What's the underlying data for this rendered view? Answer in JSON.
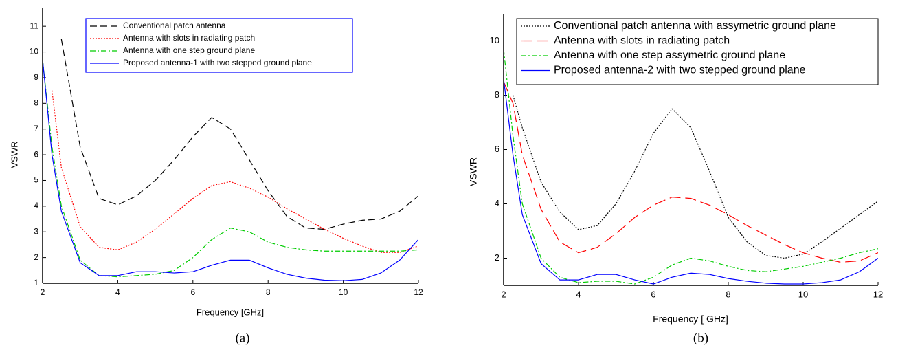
{
  "chart_data": [
    {
      "type": "line",
      "caption": "(a)",
      "x_label": "Frequency [GHz]",
      "y_label": "VSWR",
      "x": [
        2,
        2.25,
        2.5,
        3,
        3.5,
        4,
        4.5,
        5,
        5.5,
        6,
        6.5,
        7,
        7.5,
        8,
        8.5,
        9,
        9.5,
        10,
        10.5,
        11,
        11.5,
        12
      ],
      "xlim": [
        2,
        12
      ],
      "xticks": [
        2,
        4,
        6,
        8,
        10,
        12
      ],
      "ylim": [
        1,
        11.7
      ],
      "yticks": [
        1,
        2,
        3,
        4,
        5,
        6,
        7,
        8,
        9,
        10,
        11
      ],
      "legend": "upper right",
      "series": [
        {
          "name": "Conventional patch antenna",
          "color": "#000000",
          "style": "dashed",
          "values": [
            null,
            null,
            10.5,
            6.3,
            4.3,
            4.05,
            4.4,
            5.0,
            5.8,
            6.7,
            7.45,
            7.0,
            5.8,
            4.6,
            3.6,
            3.15,
            3.1,
            3.3,
            3.45,
            3.5,
            3.8,
            4.4
          ]
        },
        {
          "name": "Antenna with slots in radiating patch",
          "color": "#ff0000",
          "style": "dotted",
          "values": [
            null,
            8.5,
            5.5,
            3.2,
            2.4,
            2.3,
            2.6,
            3.1,
            3.7,
            4.3,
            4.8,
            4.95,
            4.7,
            4.35,
            3.9,
            3.5,
            3.1,
            2.75,
            2.45,
            2.2,
            2.2,
            2.45
          ]
        },
        {
          "name": "Antenna with one step ground plane",
          "color": "#00cc00",
          "style": "dash-dot",
          "values": [
            9.7,
            6.3,
            4.0,
            1.9,
            1.3,
            1.25,
            1.3,
            1.35,
            1.5,
            2.0,
            2.7,
            3.15,
            3.0,
            2.6,
            2.4,
            2.3,
            2.25,
            2.25,
            2.25,
            2.25,
            2.25,
            2.3
          ]
        },
        {
          "name": "Proposed antenna-1 with two stepped ground plane",
          "color": "#0000ff",
          "style": "solid",
          "values": [
            9.7,
            6.0,
            3.8,
            1.8,
            1.3,
            1.3,
            1.45,
            1.45,
            1.4,
            1.45,
            1.7,
            1.9,
            1.9,
            1.6,
            1.35,
            1.2,
            1.12,
            1.1,
            1.15,
            1.4,
            1.9,
            2.7
          ]
        }
      ]
    },
    {
      "type": "line",
      "caption": "(b)",
      "x_label": "Frequency [ GHz]",
      "y_label": "VSWR",
      "x": [
        2,
        2.25,
        2.5,
        3,
        3.5,
        4,
        4.5,
        5,
        5.5,
        6,
        6.5,
        7,
        7.5,
        8,
        8.5,
        9,
        9.5,
        10,
        10.5,
        11,
        11.5,
        12
      ],
      "xlim": [
        2,
        12
      ],
      "xticks": [
        2,
        4,
        6,
        8,
        10,
        12
      ],
      "ylim": [
        1,
        11
      ],
      "yticks": [
        2,
        4,
        6,
        8,
        10
      ],
      "legend": "upper right",
      "series": [
        {
          "name": "Conventional patch antenna with assymetric  ground plane",
          "color": "#000000",
          "style": "dotted",
          "values": [
            null,
            8.0,
            6.8,
            4.8,
            3.7,
            3.05,
            3.2,
            4.0,
            5.2,
            6.6,
            7.5,
            6.8,
            5.2,
            3.5,
            2.6,
            2.1,
            2.0,
            2.15,
            2.6,
            3.1,
            3.6,
            4.1
          ]
        },
        {
          "name": "Antenna with slots in radiating patch",
          "color": "#ff0000",
          "style": "long-dashed",
          "values": [
            8.5,
            7.7,
            5.8,
            3.8,
            2.6,
            2.2,
            2.4,
            2.9,
            3.5,
            3.95,
            4.25,
            4.2,
            3.95,
            3.6,
            3.2,
            2.85,
            2.5,
            2.2,
            2.0,
            1.85,
            1.9,
            2.2
          ]
        },
        {
          "name": "Antenna with one step assymetric ground plane",
          "color": "#00cc00",
          "style": "dash-dot",
          "values": [
            9.7,
            6.5,
            4.0,
            2.0,
            1.3,
            1.1,
            1.15,
            1.15,
            1.05,
            1.3,
            1.75,
            2.0,
            1.9,
            1.7,
            1.55,
            1.5,
            1.6,
            1.7,
            1.85,
            2.0,
            2.2,
            2.35
          ]
        },
        {
          "name": "Proposed antenna-2 with two stepped ground plane",
          "color": "#0000ff",
          "style": "solid",
          "values": [
            8.6,
            5.8,
            3.6,
            1.8,
            1.2,
            1.2,
            1.4,
            1.4,
            1.2,
            1.05,
            1.3,
            1.45,
            1.4,
            1.25,
            1.15,
            1.08,
            1.05,
            1.05,
            1.1,
            1.2,
            1.5,
            2.0
          ]
        }
      ]
    }
  ]
}
